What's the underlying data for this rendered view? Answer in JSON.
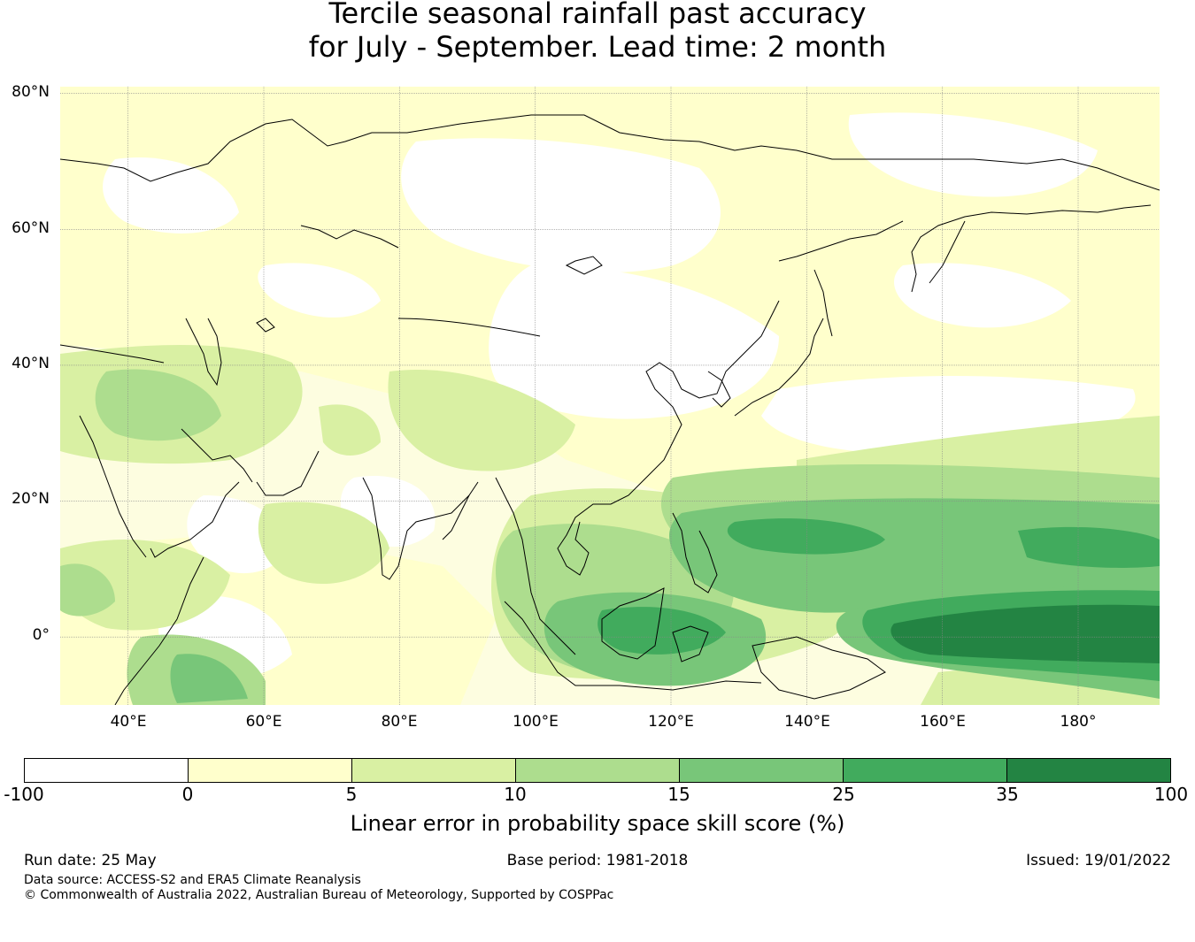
{
  "title": {
    "line1": "Tercile seasonal rainfall past accuracy",
    "line2": "for July - September. Lead time: 2 month"
  },
  "map": {
    "lat_labels": [
      "80°N",
      "60°N",
      "40°N",
      "20°N",
      "0°"
    ],
    "lon_labels": [
      "40°E",
      "60°E",
      "80°E",
      "100°E",
      "120°E",
      "140°E",
      "160°E",
      "180°"
    ],
    "extent": {
      "lon": [
        30,
        192
      ],
      "lat": [
        -10,
        81
      ]
    },
    "lat_ticks": [
      80,
      60,
      40,
      20,
      0
    ],
    "lon_ticks": [
      40,
      60,
      80,
      100,
      120,
      140,
      160,
      180
    ]
  },
  "colorbar": {
    "ticks": [
      "-100",
      "0",
      "5",
      "10",
      "15",
      "25",
      "35",
      "100"
    ],
    "colors": [
      "#ffffff",
      "#ffffcc",
      "#d9f0a3",
      "#addd8e",
      "#78c679",
      "#41ab5d",
      "#238443"
    ],
    "label": "Linear error in probability space skill score (%)"
  },
  "footer": {
    "run_date": "Run date: 25 May",
    "base_period": "Base period: 1981-2018",
    "issued": "Issued: 19/01/2022",
    "data_source": "Data source: ACCESS-S2 and ERA5 Climate Reanalysis",
    "copyright": "© Commonwealth of Australia 2022, Australian Bureau of Meteorology, Supported by COSPPac"
  }
}
